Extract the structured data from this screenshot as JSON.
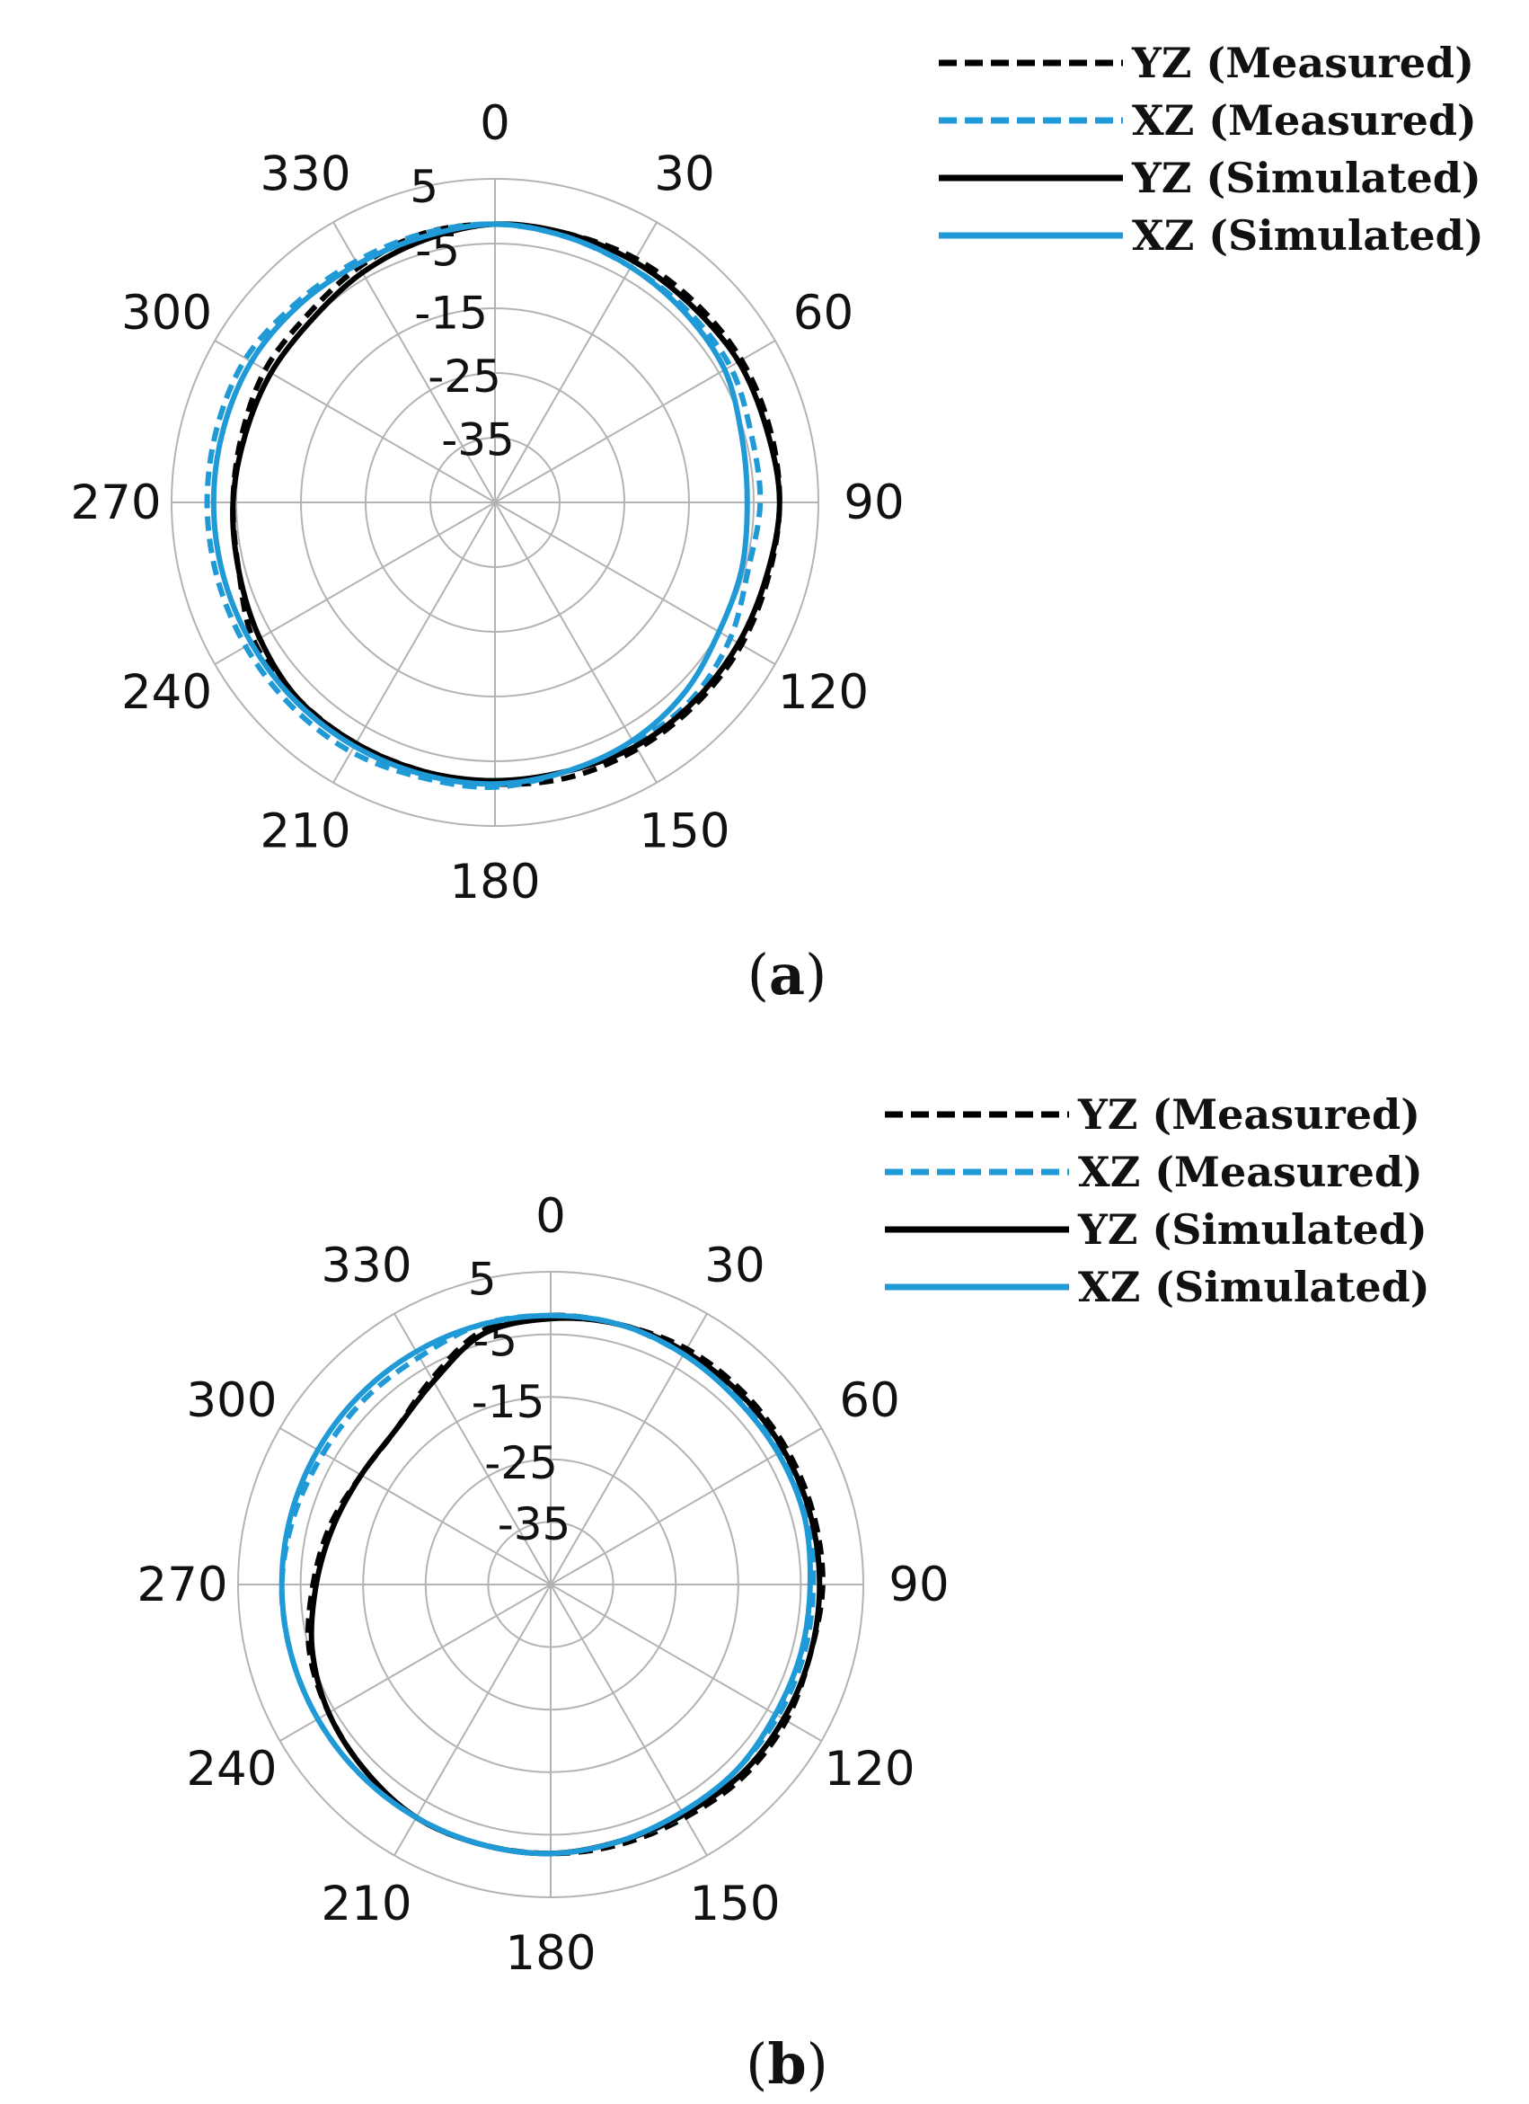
{
  "colors": {
    "black": "#000000",
    "blue": "#1f9ad6",
    "grid": "#b3b3b3"
  },
  "chart_data": [
    {
      "type": "polar",
      "caption": "a",
      "theta_ticks": [
        "0",
        "30",
        "60",
        "90",
        "120",
        "150",
        "180",
        "210",
        "240",
        "270",
        "300",
        "330"
      ],
      "r_ticks": [
        "5",
        "-5",
        "-15",
        "-25",
        "-35"
      ],
      "rlim": [
        -45,
        5
      ],
      "theta_direction": "clockwise",
      "legend_position": "top-right",
      "series": [
        {
          "name": "YZ (Measured)",
          "style": "dashed",
          "color": "#000000",
          "theta": [
            0,
            15,
            30,
            45,
            60,
            75,
            90,
            105,
            120,
            135,
            150,
            165,
            180,
            195,
            210,
            225,
            240,
            255,
            270,
            285,
            300,
            315,
            330,
            345
          ],
          "r": [
            -2,
            -2,
            -1.5,
            -1.3,
            -1,
            -1,
            -1,
            -1.2,
            -1,
            -1,
            -1,
            -1,
            -1.5,
            -2,
            -2,
            -2,
            -2,
            -4,
            -4.5,
            -4.5,
            -4,
            -4,
            -3,
            -2
          ]
        },
        {
          "name": "XZ (Measured)",
          "style": "dashed",
          "color": "#1f9ad6",
          "theta": [
            0,
            15,
            30,
            45,
            60,
            75,
            90,
            105,
            120,
            135,
            150,
            165,
            180,
            195,
            210,
            225,
            240,
            255,
            270,
            285,
            300,
            315,
            330,
            345
          ],
          "r": [
            -2,
            -2.5,
            -3,
            -3,
            -3,
            -4,
            -4,
            -4.5,
            -3,
            -2,
            -2,
            -2,
            -1,
            -1,
            -0.5,
            -0.5,
            -0.5,
            -0.5,
            -0.5,
            -0.5,
            -0.5,
            -1.5,
            -2,
            -2
          ]
        },
        {
          "name": "YZ (Simulated)",
          "style": "solid",
          "color": "#000000",
          "theta": [
            0,
            15,
            30,
            45,
            60,
            75,
            90,
            105,
            120,
            135,
            150,
            165,
            180,
            195,
            210,
            225,
            240,
            255,
            270,
            285,
            300,
            315,
            330,
            345
          ],
          "r": [
            -2,
            -2,
            -2,
            -2,
            -1.5,
            -1.5,
            -1,
            -1.5,
            -1.5,
            -1.5,
            -1.5,
            -2,
            -2,
            -2,
            -2,
            -2,
            -3,
            -4,
            -4.5,
            -5,
            -5,
            -5,
            -4,
            -3
          ]
        },
        {
          "name": "XZ (Simulated)",
          "style": "solid",
          "color": "#1f9ad6",
          "theta": [
            0,
            15,
            30,
            45,
            60,
            75,
            90,
            105,
            120,
            135,
            150,
            165,
            180,
            195,
            210,
            225,
            240,
            255,
            270,
            285,
            300,
            315,
            330,
            345
          ],
          "r": [
            -2,
            -2.5,
            -3,
            -3.5,
            -4,
            -5.5,
            -6,
            -5.5,
            -5,
            -3.5,
            -2.5,
            -2,
            -1.5,
            -1.5,
            -1.5,
            -1.5,
            -1.5,
            -1.5,
            -1.5,
            -1.5,
            -1.5,
            -2,
            -2.5,
            -2.5
          ]
        }
      ]
    },
    {
      "type": "polar",
      "caption": "b",
      "theta_ticks": [
        "0",
        "30",
        "60",
        "90",
        "120",
        "150",
        "180",
        "210",
        "240",
        "270",
        "300",
        "330"
      ],
      "r_ticks": [
        "5",
        "-5",
        "-15",
        "-25",
        "-35"
      ],
      "rlim": [
        -45,
        5
      ],
      "theta_direction": "clockwise",
      "legend_position": "top-right",
      "series": [
        {
          "name": "YZ (Measured)",
          "style": "dashed",
          "color": "#000000",
          "theta": [
            0,
            15,
            30,
            45,
            60,
            75,
            90,
            105,
            120,
            135,
            150,
            165,
            180,
            195,
            210,
            225,
            240,
            255,
            270,
            285,
            300,
            315,
            330,
            345
          ],
          "r": [
            -2,
            -2,
            -1.5,
            -1.5,
            -1.5,
            -1.5,
            -1.5,
            -2,
            -1.5,
            -1.5,
            -2,
            -2,
            -2,
            -2,
            -2,
            -3,
            -4,
            -5,
            -7,
            -8.5,
            -10,
            -10,
            -7,
            -3
          ]
        },
        {
          "name": "XZ (Measured)",
          "style": "dashed",
          "color": "#1f9ad6",
          "theta": [
            0,
            15,
            30,
            45,
            60,
            75,
            90,
            105,
            120,
            135,
            150,
            165,
            180,
            195,
            210,
            225,
            240,
            255,
            270,
            285,
            300,
            315,
            330,
            345
          ],
          "r": [
            -2,
            -2,
            -2.5,
            -2.5,
            -2.5,
            -2.5,
            -3,
            -3,
            -3,
            -3,
            -2.5,
            -2.5,
            -2,
            -2,
            -2,
            -2,
            -2,
            -2,
            -2,
            -2.5,
            -3,
            -3,
            -3,
            -2
          ]
        },
        {
          "name": "YZ (Simulated)",
          "style": "solid",
          "color": "#000000",
          "theta": [
            0,
            15,
            30,
            45,
            60,
            75,
            90,
            105,
            120,
            135,
            150,
            165,
            180,
            195,
            210,
            225,
            240,
            255,
            270,
            285,
            300,
            315,
            330,
            345
          ],
          "r": [
            -2.5,
            -2,
            -2,
            -2,
            -2,
            -2,
            -2,
            -2,
            -2,
            -2,
            -2.5,
            -2.5,
            -2,
            -2,
            -2,
            -3,
            -4,
            -5.5,
            -7.5,
            -9,
            -10,
            -10,
            -7.5,
            -3.5
          ]
        },
        {
          "name": "XZ (Simulated)",
          "style": "solid",
          "color": "#1f9ad6",
          "theta": [
            0,
            15,
            30,
            45,
            60,
            75,
            90,
            105,
            120,
            135,
            150,
            165,
            180,
            195,
            210,
            225,
            240,
            255,
            270,
            285,
            300,
            315,
            330,
            345
          ],
          "r": [
            -2,
            -2,
            -2.5,
            -3,
            -3,
            -3,
            -3.5,
            -3.5,
            -3.5,
            -3,
            -3,
            -2.5,
            -2,
            -2,
            -2,
            -2,
            -2,
            -2,
            -2,
            -2,
            -2,
            -2,
            -2,
            -2
          ]
        }
      ]
    }
  ]
}
